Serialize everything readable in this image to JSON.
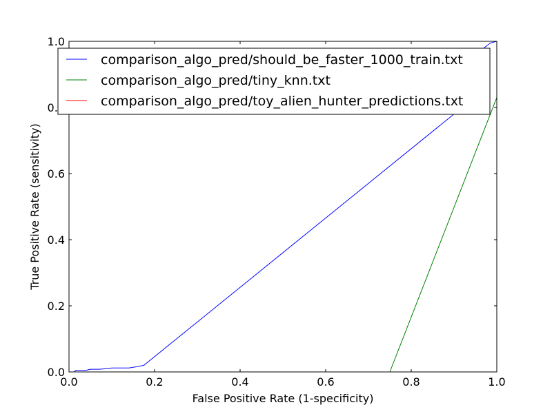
{
  "chart_data": {
    "type": "line",
    "title": "",
    "xlabel": "False Positive Rate (1-specificity)",
    "ylabel": "True Positive Rate (sensitivity)",
    "xlim": [
      0.0,
      1.0
    ],
    "ylim": [
      0.0,
      1.0
    ],
    "xticks": [
      0.0,
      0.2,
      0.4,
      0.6,
      0.8,
      1.0
    ],
    "yticks": [
      0.0,
      0.2,
      0.4,
      0.6,
      0.8,
      1.0
    ],
    "xtick_labels": [
      "0.0",
      "0.2",
      "0.4",
      "0.6",
      "0.8",
      "1.0"
    ],
    "ytick_labels": [
      "0.0",
      "0.2",
      "0.4",
      "0.6",
      "0.8",
      "1.0"
    ],
    "grid": false,
    "legend_position": "top-right",
    "series": [
      {
        "name": "comparison_algo_pred/should_be_faster_1000_train.txt",
        "color": "#0000ff",
        "points": [
          [
            0.0,
            0.0
          ],
          [
            0.012,
            0.0
          ],
          [
            0.016,
            0.005
          ],
          [
            0.04,
            0.005
          ],
          [
            0.05,
            0.008
          ],
          [
            0.07,
            0.008
          ],
          [
            0.09,
            0.01
          ],
          [
            0.1,
            0.012
          ],
          [
            0.14,
            0.012
          ],
          [
            0.16,
            0.016
          ],
          [
            0.175,
            0.02
          ],
          [
            0.9,
            0.78
          ],
          [
            0.97,
            0.98
          ],
          [
            0.985,
            0.995
          ],
          [
            1.0,
            1.0
          ]
        ]
      },
      {
        "name": "comparison_algo_pred/tiny_knn.txt",
        "color": "#008000",
        "points": [
          [
            0.0,
            0.0
          ],
          [
            0.75,
            0.0
          ],
          [
            1.0,
            0.83
          ],
          [
            1.0,
            1.0
          ]
        ]
      },
      {
        "name": "comparison_algo_pred/toy_alien_hunter_predictions.txt",
        "color": "#ff0000",
        "points": []
      }
    ]
  }
}
